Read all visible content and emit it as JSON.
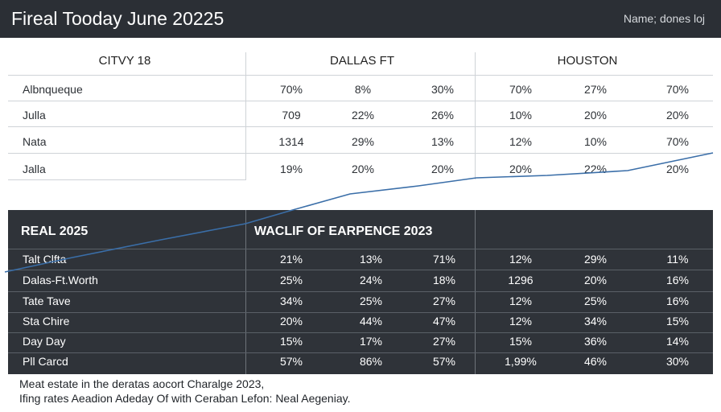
{
  "header": {
    "title": "Fireal Tooday June 20225",
    "meta": "Name; dones loj"
  },
  "top_table": {
    "headers": [
      "CITVY 18",
      "DALLAS FT",
      "HOUSTON"
    ],
    "rows": [
      {
        "label": "Albnqueque",
        "values": [
          "70%",
          "8%",
          "30%",
          "70%",
          "27%",
          "70%"
        ]
      },
      {
        "label": "Julla",
        "values": [
          "709",
          "22%",
          "26%",
          "10%",
          "20%",
          "20%"
        ]
      },
      {
        "label": "Nata",
        "values": [
          "1314",
          "29%",
          "13%",
          "12%",
          "10%",
          "70%"
        ]
      },
      {
        "label": "Jalla",
        "values": [
          "19%",
          "20%",
          "20%",
          "20%",
          "22%",
          "20%"
        ]
      }
    ]
  },
  "bottom_table": {
    "header_left": "REAL 2025",
    "header_mid": "WACLIF OF EARPENCE 2023",
    "rows": [
      {
        "label": "Talt Clfta",
        "values": [
          "21%",
          "13%",
          "71%",
          "12%",
          "29%",
          "11%"
        ]
      },
      {
        "label": "Dalas-Ft.Worth",
        "values": [
          "25%",
          "24%",
          "18%",
          "1296",
          "20%",
          "16%"
        ]
      },
      {
        "label": "Tate Tave",
        "values": [
          "34%",
          "25%",
          "27%",
          "12%",
          "25%",
          "16%"
        ]
      },
      {
        "label": "Sta Chire",
        "values": [
          "20%",
          "44%",
          "47%",
          "12%",
          "34%",
          "15%"
        ]
      },
      {
        "label": "Day Day",
        "values": [
          "15%",
          "17%",
          "27%",
          "15%",
          "36%",
          "14%"
        ]
      },
      {
        "label": "Pll Carcd",
        "values": [
          "57%",
          "86%",
          "57%",
          "1,99%",
          "46%",
          "30%"
        ]
      }
    ]
  },
  "footer": {
    "line1": "Meat estate in the deratas aocort Charalge 2023,",
    "line2": "Ifing rates Aeadion Adeday Of with Ceraban Lefon: Neal Aegeniay."
  },
  "chart_data": {
    "type": "table",
    "title": "Fireal Tooday June 20225",
    "tables": [
      {
        "columns": [
          "CITVY 18",
          "DALLAS FT",
          "HOUSTON"
        ],
        "rows": [
          "Albnqueque",
          "Julla",
          "Nata",
          "Jalla"
        ],
        "values": [
          [
            "70%",
            "8%",
            "30%",
            "70%",
            "27%",
            "70%"
          ],
          [
            "709",
            "22%",
            "26%",
            "10%",
            "20%",
            "20%"
          ],
          [
            "1314",
            "29%",
            "13%",
            "12%",
            "10%",
            "70%"
          ],
          [
            "19%",
            "20%",
            "20%",
            "20%",
            "22%",
            "20%"
          ]
        ]
      },
      {
        "columns": [
          "REAL 2025",
          "WACLIF OF EARPENCE 2023"
        ],
        "rows": [
          "Talt Clfta",
          "Dalas-Ft.Worth",
          "Tate Tave",
          "Sta Chire",
          "Day Day",
          "Pll Carcd"
        ],
        "values": [
          [
            "21%",
            "13%",
            "71%",
            "12%",
            "29%",
            "11%"
          ],
          [
            "25%",
            "24%",
            "18%",
            "1296",
            "20%",
            "16%"
          ],
          [
            "34%",
            "25%",
            "27%",
            "12%",
            "25%",
            "16%"
          ],
          [
            "20%",
            "44%",
            "47%",
            "12%",
            "34%",
            "15%"
          ],
          [
            "15%",
            "17%",
            "27%",
            "15%",
            "36%",
            "14%"
          ],
          [
            "57%",
            "86%",
            "57%",
            "1,99%",
            "46%",
            "30%"
          ]
        ]
      }
    ],
    "line_color": "#3a6ea8"
  }
}
